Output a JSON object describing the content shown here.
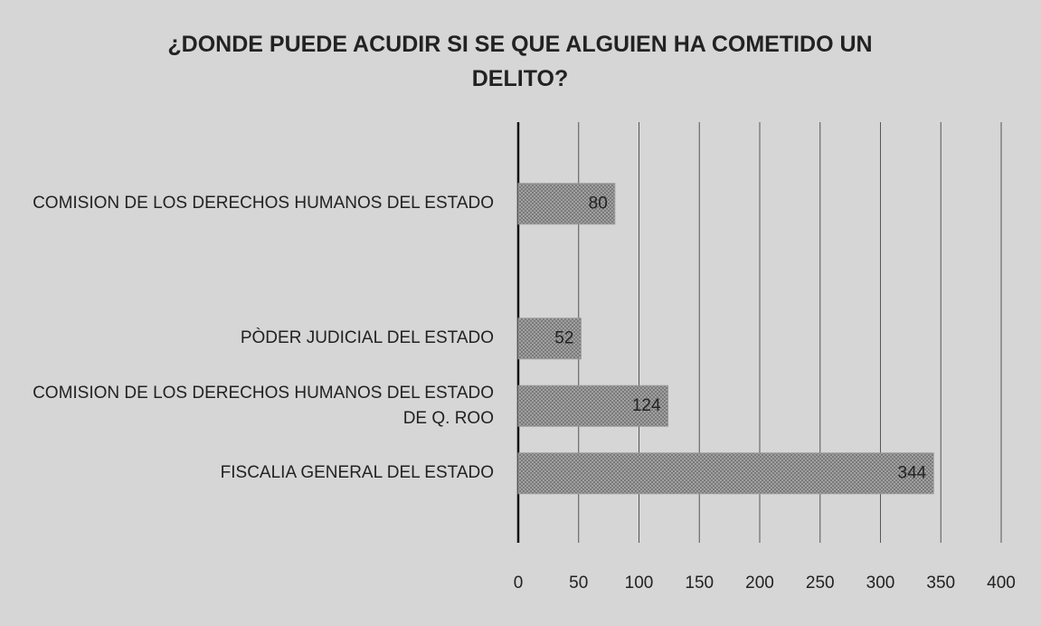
{
  "chart_data": {
    "type": "bar",
    "orientation": "horizontal",
    "title": "¿DONDE PUEDE ACUDIR SI SE QUE ALGUIEN HA COMETIDO UN DELITO?",
    "categories": [
      "COMISION DE LOS DERECHOS HUMANOS DEL ESTADO",
      null,
      "PÒDER JUDICIAL DEL ESTADO",
      "COMISION DE LOS DERECHOS HUMANOS DEL ESTADO DE Q. ROO",
      "FISCALIA GENERAL DEL ESTADO"
    ],
    "values": [
      80,
      null,
      52,
      124,
      344
    ],
    "color": "#9a9a9a",
    "xlim": [
      0,
      400
    ],
    "xticks": [
      0,
      50,
      100,
      150,
      200,
      250,
      300,
      350,
      400
    ],
    "grid": true
  }
}
